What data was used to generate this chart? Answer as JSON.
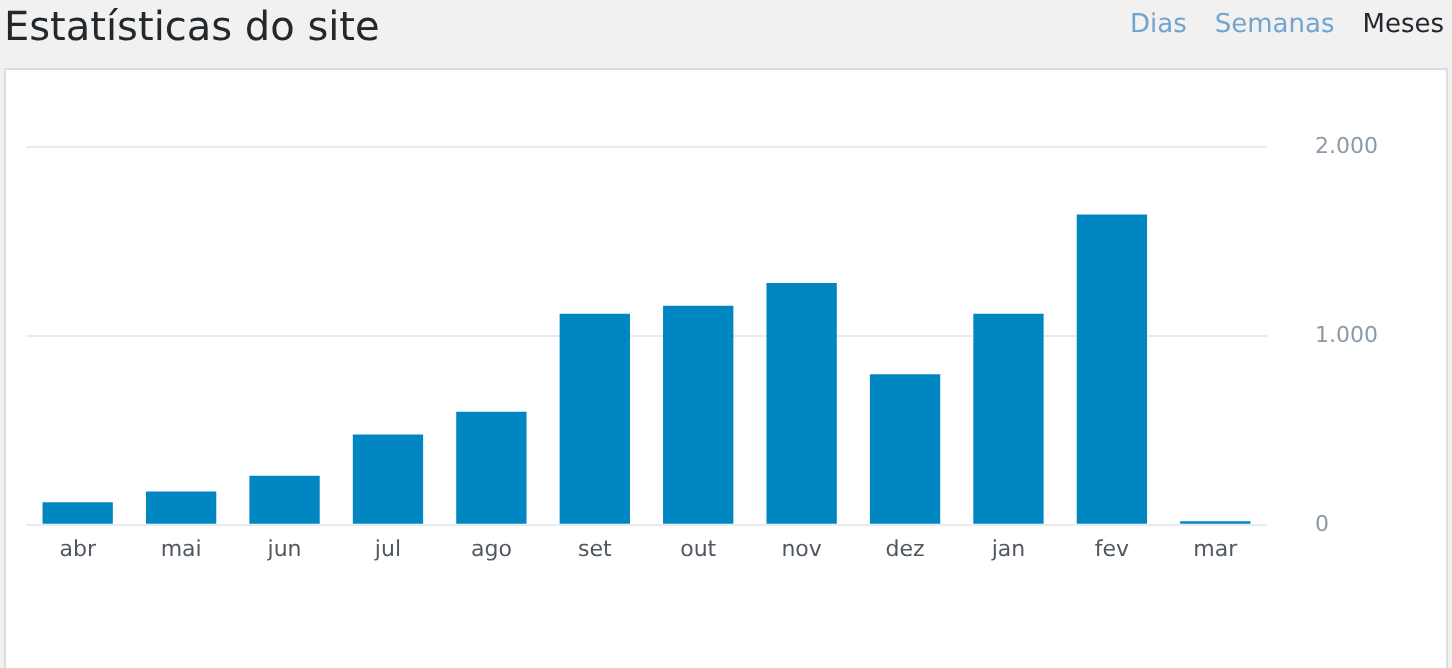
{
  "chart_data": {
    "type": "bar",
    "title": "Estatísticas do site",
    "annotations": [
      "Dias",
      "Semanas",
      "Meses"
    ],
    "categories": [
      "abr",
      "mai",
      "jun",
      "jul",
      "ago",
      "set",
      "out",
      "nov",
      "dez",
      "jan",
      "fev",
      "mar"
    ],
    "values": [
      120,
      176,
      260,
      478,
      599,
      1118,
      1160,
      1281,
      798,
      1118,
      1643,
      19
    ],
    "color": "#0087c1",
    "ylim": [
      0,
      2000
    ],
    "yticks": [
      {
        "value": 0,
        "label": "0"
      },
      {
        "value": 1000,
        "label": "1.000"
      },
      {
        "value": 2000,
        "label": "2.000"
      }
    ],
    "grid": "y"
  }
}
